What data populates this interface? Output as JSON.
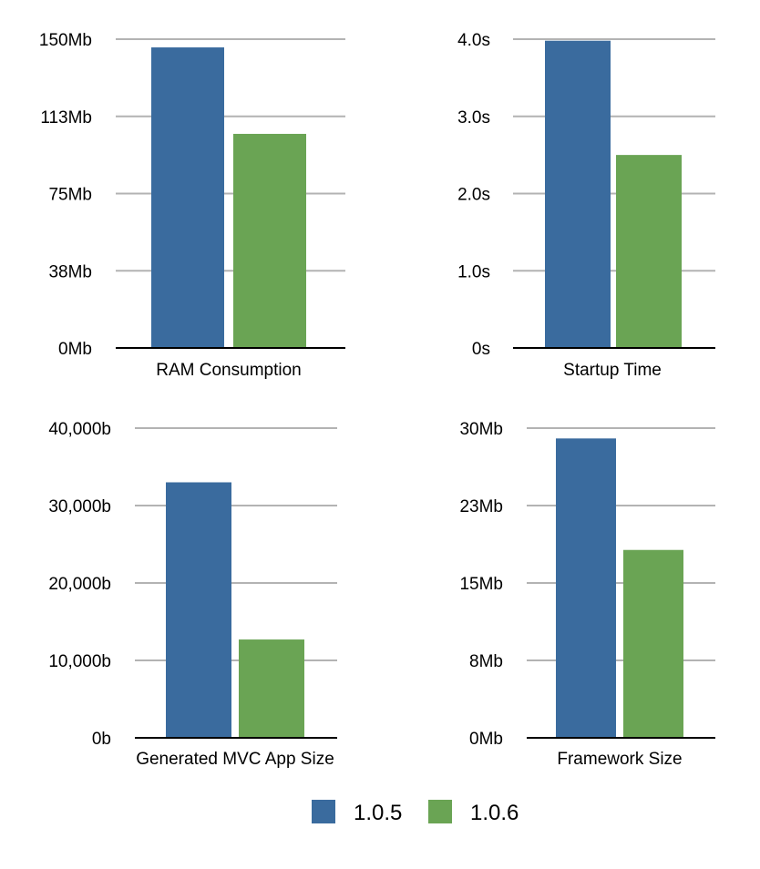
{
  "chart_data": [
    {
      "type": "bar",
      "title": "",
      "xlabel": "RAM Consumption",
      "ylabel": "",
      "categories": [
        "RAM Consumption"
      ],
      "series": [
        {
          "name": "1.0.5",
          "values": [
            146
          ]
        },
        {
          "name": "1.0.6",
          "values": [
            104
          ]
        }
      ],
      "ylim": [
        0,
        150
      ],
      "y_ticks": [
        "0Mb",
        "38Mb",
        "75Mb",
        "113Mb",
        "150Mb"
      ],
      "grid": true
    },
    {
      "type": "bar",
      "title": "",
      "xlabel": "Startup Time",
      "ylabel": "",
      "categories": [
        "Startup Time"
      ],
      "series": [
        {
          "name": "1.0.5",
          "values": [
            3.98
          ]
        },
        {
          "name": "1.0.6",
          "values": [
            2.5
          ]
        }
      ],
      "ylim": [
        0,
        4
      ],
      "y_ticks": [
        "0s",
        "1.0s",
        "2.0s",
        "3.0s",
        "4.0s"
      ],
      "grid": true
    },
    {
      "type": "bar",
      "title": "",
      "xlabel": "Generated MVC App Size",
      "ylabel": "",
      "categories": [
        "Generated MVC App Size"
      ],
      "series": [
        {
          "name": "1.0.5",
          "values": [
            33000
          ]
        },
        {
          "name": "1.0.6",
          "values": [
            12700
          ]
        }
      ],
      "ylim": [
        0,
        40000
      ],
      "y_ticks": [
        "0b",
        "10,000b",
        "20,000b",
        "30,000b",
        "40,000b"
      ],
      "grid": true
    },
    {
      "type": "bar",
      "title": "",
      "xlabel": "Framework Size",
      "ylabel": "",
      "categories": [
        "Framework Size"
      ],
      "series": [
        {
          "name": "1.0.5",
          "values": [
            29
          ]
        },
        {
          "name": "1.0.6",
          "values": [
            18.2
          ]
        }
      ],
      "ylim": [
        0,
        30
      ],
      "y_ticks": [
        "0Mb",
        "8Mb",
        "15Mb",
        "23Mb",
        "30Mb"
      ],
      "grid": true
    }
  ],
  "legend": {
    "placement": "bottom-center",
    "items": [
      {
        "label": "1.0.5",
        "color": "#3a6b9e"
      },
      {
        "label": "1.0.6",
        "color": "#6aa454"
      }
    ]
  },
  "colors": {
    "series": [
      "#3a6b9e",
      "#6aa454"
    ],
    "grid": "#b3b3b3",
    "axis": "#000000"
  }
}
